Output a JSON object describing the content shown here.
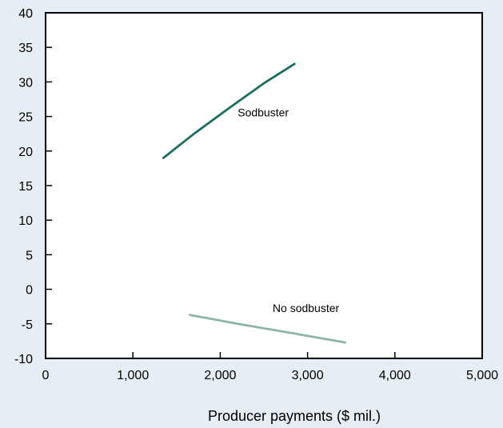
{
  "chart_data": {
    "type": "line",
    "title": "",
    "xlabel": "Producer payments ($ mil.)",
    "ylabel": "",
    "xlim": [
      0,
      5000
    ],
    "ylim": [
      -10,
      40
    ],
    "x_ticks": [
      0,
      1000,
      2000,
      3000,
      4000,
      5000
    ],
    "x_tick_labels": [
      "0",
      "1,000",
      "2,000",
      "3,000",
      "4,000",
      "5,000"
    ],
    "y_ticks": [
      -10,
      -5,
      0,
      5,
      10,
      15,
      20,
      25,
      30,
      35,
      40
    ],
    "y_tick_labels": [
      "-10",
      "-5",
      "0",
      "5",
      "10",
      "15",
      "20",
      "25",
      "30",
      "35",
      "40"
    ],
    "grid": false,
    "legend": "none",
    "series": [
      {
        "name": "Sodbuster",
        "color": "#1f6b5e",
        "x": [
          1350,
          1700,
          2100,
          2500,
          2850
        ],
        "y": [
          19,
          22.5,
          26.2,
          29.8,
          32.6
        ]
      },
      {
        "name": "No sodbuster",
        "color": "#8fb5a8",
        "x": [
          1650,
          2200,
          2800,
          3430
        ],
        "y": [
          -3.7,
          -5.0,
          -6.3,
          -7.7
        ]
      }
    ]
  }
}
